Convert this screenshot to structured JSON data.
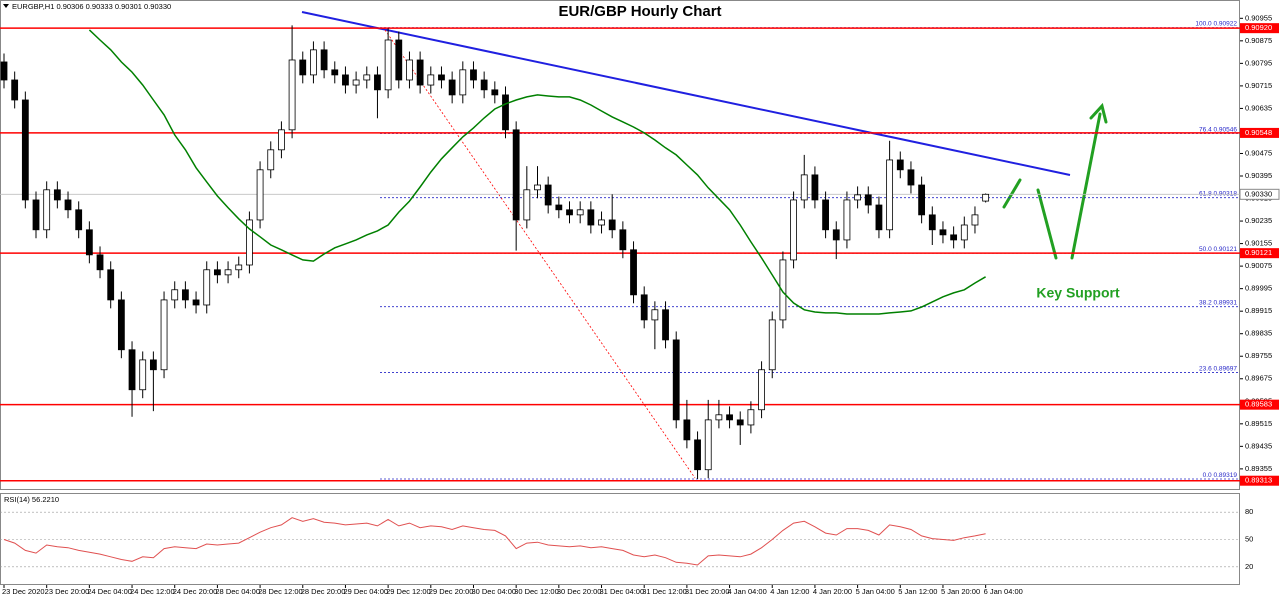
{
  "chart_data": {
    "type": "candlestick",
    "title": "EUR/GBP Hourly Chart",
    "header": "EURGBP,H1  0.90306 0.90333 0.90301 0.90330",
    "annotation": "Key Support",
    "x_labels": [
      "23 Dec 2020",
      "23 Dec 20:00",
      "24 Dec 04:00",
      "24 Dec 12:00",
      "24 Dec 20:00",
      "28 Dec 04:00",
      "28 Dec 12:00",
      "28 Dec 20:00",
      "29 Dec 04:00",
      "29 Dec 12:00",
      "29 Dec 20:00",
      "30 Dec 04:00",
      "30 Dec 12:00",
      "30 Dec 20:00",
      "31 Dec 04:00",
      "31 Dec 12:00",
      "31 Dec 20:00",
      "4 Jan 04:00",
      "4 Jan 12:00",
      "4 Jan 20:00",
      "5 Jan 04:00",
      "5 Jan 12:00",
      "5 Jan 20:00",
      "6 Jan 04:00"
    ],
    "open": [
      0.908,
      0.90736,
      0.90665,
      0.9031,
      0.90204,
      0.90346,
      0.9031,
      0.90275,
      0.90204,
      0.90115,
      0.90062,
      0.89955,
      0.89778,
      0.89636,
      0.89742,
      0.89707,
      0.89955,
      0.89991,
      0.89955,
      0.89937,
      0.90062,
      0.90044,
      0.90062,
      0.90079,
      0.90239,
      0.90417,
      0.90488,
      0.90559,
      0.90807,
      0.90754,
      0.90843,
      0.90772,
      0.90754,
      0.90718,
      0.90736,
      0.90754,
      0.90701,
      0.90878,
      0.90736,
      0.90807,
      0.90718,
      0.90754,
      0.90736,
      0.90683,
      0.90772,
      0.90736,
      0.90701,
      0.90683,
      0.90559,
      0.90239,
      0.90346,
      0.90363,
      0.90292,
      0.90275,
      0.90257,
      0.90275,
      0.90221,
      0.90239,
      0.90204,
      0.90133,
      0.89973,
      0.89884,
      0.8992,
      0.89813,
      0.89529,
      0.89458,
      0.89352,
      0.89529,
      0.89547,
      0.89529,
      0.89511,
      0.89565,
      0.89707,
      0.89884,
      0.90097,
      0.9031,
      0.90399,
      0.9031,
      0.90204,
      0.90168,
      0.9031,
      0.90328,
      0.90292,
      0.90204,
      0.90452,
      0.90417,
      0.90363,
      0.90257,
      0.90204,
      0.90186,
      0.90168,
      0.90221,
      0.90306
    ],
    "high": [
      0.9083,
      0.90766,
      0.90695,
      0.9034,
      0.90376,
      0.90376,
      0.9034,
      0.90305,
      0.90234,
      0.90145,
      0.90092,
      0.89985,
      0.89808,
      0.89772,
      0.89772,
      0.89985,
      0.90021,
      0.90021,
      0.89985,
      0.90092,
      0.90092,
      0.90092,
      0.90109,
      0.90269,
      0.90447,
      0.90518,
      0.90589,
      0.9093,
      0.90837,
      0.90873,
      0.90873,
      0.90802,
      0.90784,
      0.90766,
      0.90784,
      0.90784,
      0.9092,
      0.90908,
      0.90837,
      0.90837,
      0.90784,
      0.90784,
      0.90766,
      0.90802,
      0.90802,
      0.90766,
      0.90731,
      0.90713,
      0.90589,
      0.9043,
      0.9043,
      0.90393,
      0.90322,
      0.90305,
      0.90305,
      0.90305,
      0.90269,
      0.9033,
      0.90234,
      0.90163,
      0.90003,
      0.8995,
      0.8995,
      0.89843,
      0.896,
      0.89488,
      0.896,
      0.896,
      0.89577,
      0.89559,
      0.89595,
      0.89737,
      0.89914,
      0.90127,
      0.9034,
      0.9047,
      0.90429,
      0.9034,
      0.90234,
      0.9034,
      0.90358,
      0.90358,
      0.90322,
      0.9052,
      0.90482,
      0.90447,
      0.90393,
      0.90287,
      0.90234,
      0.90216,
      0.90251,
      0.90287,
      0.90333
    ],
    "low": [
      0.90706,
      0.90635,
      0.9028,
      0.90174,
      0.90174,
      0.9028,
      0.90245,
      0.90174,
      0.90085,
      0.90032,
      0.89925,
      0.89748,
      0.8954,
      0.89606,
      0.8956,
      0.89677,
      0.89925,
      0.89925,
      0.89907,
      0.89907,
      0.90014,
      0.90014,
      0.90032,
      0.90049,
      0.90209,
      0.90387,
      0.90458,
      0.90529,
      0.90724,
      0.90724,
      0.90742,
      0.90724,
      0.90688,
      0.90688,
      0.90706,
      0.906,
      0.90671,
      0.90706,
      0.90706,
      0.90688,
      0.90688,
      0.90706,
      0.90653,
      0.90653,
      0.90706,
      0.90671,
      0.90653,
      0.90529,
      0.9013,
      0.90209,
      0.90316,
      0.90262,
      0.90245,
      0.90227,
      0.90227,
      0.90191,
      0.90191,
      0.90174,
      0.90103,
      0.89943,
      0.89854,
      0.8978,
      0.89783,
      0.89499,
      0.89428,
      0.89319,
      0.89322,
      0.89499,
      0.89499,
      0.8944,
      0.89481,
      0.89535,
      0.89677,
      0.89854,
      0.90067,
      0.9028,
      0.9028,
      0.90174,
      0.901,
      0.90138,
      0.9028,
      0.90262,
      0.90174,
      0.90174,
      0.90387,
      0.90333,
      0.90227,
      0.9015,
      0.90156,
      0.90138,
      0.90138,
      0.90191,
      0.90301
    ],
    "close": [
      0.90736,
      0.90665,
      0.9031,
      0.90204,
      0.90346,
      0.9031,
      0.90275,
      0.90204,
      0.90115,
      0.90062,
      0.89955,
      0.89778,
      0.89636,
      0.89742,
      0.89707,
      0.89955,
      0.89991,
      0.89955,
      0.89937,
      0.90062,
      0.90044,
      0.90062,
      0.90079,
      0.90239,
      0.90417,
      0.90488,
      0.90559,
      0.90807,
      0.90754,
      0.90843,
      0.90772,
      0.90754,
      0.90718,
      0.90736,
      0.90754,
      0.90701,
      0.90878,
      0.90736,
      0.90807,
      0.90718,
      0.90754,
      0.90736,
      0.90683,
      0.90772,
      0.90736,
      0.90701,
      0.90683,
      0.90559,
      0.90239,
      0.90346,
      0.90363,
      0.90292,
      0.90275,
      0.90257,
      0.90275,
      0.90221,
      0.90239,
      0.90204,
      0.90133,
      0.89973,
      0.89884,
      0.8992,
      0.89813,
      0.89529,
      0.89458,
      0.89352,
      0.89529,
      0.89547,
      0.89529,
      0.89511,
      0.89565,
      0.89707,
      0.89884,
      0.90097,
      0.9031,
      0.90399,
      0.9031,
      0.90204,
      0.90168,
      0.9031,
      0.90328,
      0.90292,
      0.90204,
      0.90452,
      0.90417,
      0.90363,
      0.90257,
      0.90204,
      0.90186,
      0.90168,
      0.90221,
      0.90257,
      0.9033
    ],
    "bull_color": "#ffffff",
    "bear_color": "#000000",
    "ma": {
      "color": "#008000",
      "values": [
        null,
        null,
        null,
        null,
        null,
        null,
        null,
        null,
        0.90914,
        0.90878,
        0.90843,
        0.908,
        0.90764,
        0.90718,
        0.90665,
        0.90612,
        0.90541,
        0.90488,
        0.90424,
        0.90374,
        0.90324,
        0.90282,
        0.90243,
        0.90207,
        0.90179,
        0.9015,
        0.90133,
        0.90115,
        0.90097,
        0.90093,
        0.90118,
        0.9014,
        0.90154,
        0.90168,
        0.90186,
        0.902,
        0.90221,
        0.90267,
        0.90306,
        0.90356,
        0.90409,
        0.90456,
        0.90495,
        0.90534,
        0.90566,
        0.90601,
        0.90633,
        0.90651,
        0.90665,
        0.90676,
        0.90683,
        0.90679,
        0.90676,
        0.90676,
        0.90665,
        0.90647,
        0.90626,
        0.90605,
        0.90587,
        0.90569,
        0.90548,
        0.90523,
        0.90495,
        0.9047,
        0.90434,
        0.90399,
        0.90353,
        0.90314,
        0.90275,
        0.90221,
        0.90161,
        0.90104,
        0.90044,
        0.89983,
        0.89944,
        0.8992,
        0.89912,
        0.89909,
        0.89909,
        0.89905,
        0.89905,
        0.89905,
        0.89905,
        0.89909,
        0.89912,
        0.89916,
        0.8993,
        0.89948,
        0.89966,
        0.8998,
        0.89991,
        0.90015,
        0.90037
      ]
    },
    "ylim": [
      0.8928,
      0.9102
    ],
    "yticks": [
      0.90955,
      0.90875,
      0.90795,
      0.90715,
      0.90635,
      0.90555,
      0.90475,
      0.90395,
      0.90315,
      0.90235,
      0.90155,
      0.90075,
      0.89995,
      0.89915,
      0.89835,
      0.89755,
      0.89675,
      0.89595,
      0.89515,
      0.89435,
      0.89355
    ],
    "level_color": "#ff0000",
    "levels": [
      {
        "value": 0.9092,
        "label": "0.90920"
      },
      {
        "value": 0.90548,
        "label": "0.90548"
      },
      {
        "value": 0.90121,
        "label": "0.90121"
      },
      {
        "value": 0.89583,
        "label": "0.89583"
      },
      {
        "value": 0.89313,
        "label": "0.89313"
      }
    ],
    "fib_color": "#2828c8",
    "fib_levels": [
      {
        "ratio": "100.0",
        "price": 0.90922
      },
      {
        "ratio": "76.4",
        "price": 0.90546
      },
      {
        "ratio": "61.8",
        "price": 0.90318
      },
      {
        "ratio": "50.0",
        "price": 0.90121
      },
      {
        "ratio": "38.2",
        "price": 0.89931
      },
      {
        "ratio": "23.6",
        "price": 0.89697
      },
      {
        "ratio": "0.0",
        "price": 0.89319
      }
    ],
    "current_price": {
      "value": 0.9033,
      "label": "0.90330"
    },
    "rsi": {
      "label": "RSI(14) 56.2210",
      "color": "#e05050",
      "ylim": [
        0,
        100
      ],
      "yticks": [
        20,
        50,
        80
      ],
      "values": [
        50,
        46,
        38,
        35,
        44,
        42,
        41,
        38,
        36,
        34,
        31,
        28,
        26,
        31,
        30,
        40,
        42,
        41,
        40,
        45,
        44,
        45,
        46,
        52,
        58,
        63,
        66,
        74,
        70,
        73,
        69,
        68,
        66,
        67,
        68,
        65,
        72,
        65,
        68,
        63,
        65,
        64,
        61,
        65,
        63,
        61,
        60,
        54,
        40,
        46,
        47,
        44,
        43,
        42,
        43,
        41,
        42,
        40,
        38,
        33,
        31,
        33,
        30,
        25,
        24,
        22,
        32,
        33,
        32,
        31,
        34,
        41,
        50,
        60,
        68,
        70,
        64,
        57,
        55,
        62,
        62,
        60,
        55,
        66,
        64,
        61,
        54,
        51,
        50,
        49,
        52,
        54,
        56.221
      ]
    }
  }
}
